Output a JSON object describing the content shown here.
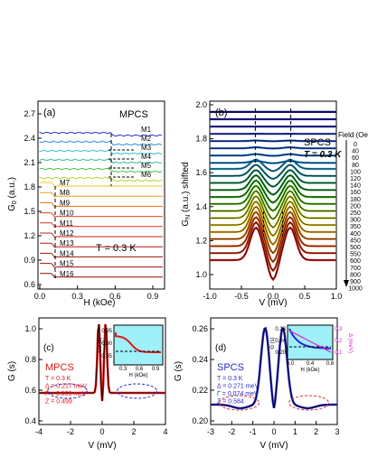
{
  "panels": {
    "a": {
      "label": "(a)",
      "title": "MPCS",
      "temp": "T = 0.3 K",
      "ylabel": "G",
      "ylabel_sub": "0",
      "ylabel_rest": " (a.u.)",
      "xlabel": "H (kOe)",
      "yticks": [
        "2.7",
        "2.4",
        "2.1",
        "1.8",
        "1.5",
        "1.2",
        "0.9",
        "0.6"
      ],
      "xticks": [
        "0.0",
        "0.3",
        "0.6",
        "0.9"
      ],
      "upper_labels": [
        "M1",
        "M2",
        "M3",
        "M4",
        "M5",
        "M6"
      ],
      "lower_labels": [
        "M7",
        "M8",
        "M9",
        "M10",
        "M11",
        "M12",
        "M13",
        "M14",
        "M15",
        "M16"
      ],
      "upper_colors": [
        "#2233cc",
        "#2f8fe0",
        "#33c0d8",
        "#33c48a",
        "#44c844",
        "#b0d830"
      ],
      "lower_colors": [
        "#f2c020",
        "#f0a020",
        "#e87018",
        "#e04818",
        "#d83018",
        "#c82018",
        "#b81818",
        "#a81010",
        "#a01010",
        "#900808"
      ]
    },
    "b": {
      "label": "(b)",
      "title": "SPCS",
      "temp": "T = 0.3 K",
      "ylabel": "G",
      "ylabel_sub": "N",
      "ylabel_rest": " (a.u.) shifted",
      "xlabel": "V (mV)",
      "yticks": [
        "2.0",
        "1.8",
        "1.6",
        "1.4",
        "1.2",
        "1.0"
      ],
      "xticks": [
        "-1.0",
        "-0.5",
        "0.0",
        "0.5",
        "1.0"
      ],
      "legend_title": "Field (Oe)",
      "fields": [
        "0",
        "40",
        "60",
        "80",
        "100",
        "120",
        "140",
        "160",
        "180",
        "200",
        "250",
        "300",
        "350",
        "400",
        "450",
        "500",
        "550",
        "600",
        "700",
        "800",
        "900",
        "1000"
      ]
    },
    "c": {
      "label": "(c)",
      "title": "MPCS",
      "ylabel": "G (s)",
      "xlabel": "V (mV)",
      "params": [
        "T = 0.3 K",
        "Δ = 0.217 meV",
        "Γ = 0.009 meV",
        "Z = 0.499"
      ],
      "yticks": [
        "1.0",
        "0.8",
        "0.6",
        "0.4"
      ],
      "xticks": [
        "-4",
        "-2",
        "0",
        "2",
        "4"
      ],
      "inset": {
        "ylabel": "G0 (s)",
        "xlabel": "H (kOe)",
        "yticks": [
          "0.95",
          "0.90",
          "0.85"
        ],
        "xticks": [
          "0.3",
          "0.6",
          "0.9"
        ]
      }
    },
    "d": {
      "label": "(d)",
      "title": "SPCS",
      "ylabel": "G (s)",
      "xlabel": "V (mV)",
      "params": [
        "T = 0.3 K",
        "Δ = 0.271 meV",
        "Γ = 0.074 meV",
        "Z = 0.584"
      ],
      "yticks": [
        "0.26",
        "0.24",
        "0.22",
        "0.20"
      ],
      "xticks": [
        "-3",
        "-2",
        "-1",
        "0",
        "1",
        "2",
        "3"
      ],
      "inset": {
        "ylabel": "G (s)",
        "xlabel": "H (kOe)",
        "yticks": [
          "0.28",
          "0.24",
          "0.20"
        ],
        "xticks": [
          "0.0",
          "0.4",
          "0.8"
        ],
        "y2label": "Δ (meV)",
        "y2ticks": [
          "0.3",
          "0.2",
          "0.1"
        ]
      }
    }
  },
  "colors": {
    "fit_line": "#000000",
    "inset_bg": "#9ff0f8",
    "panel_c_data": "#e01818",
    "panel_d_data": "#2828c8",
    "ellipse_red": "#e03030",
    "ellipse_blue": "#2828c8",
    "magenta": "#e020d8"
  }
}
